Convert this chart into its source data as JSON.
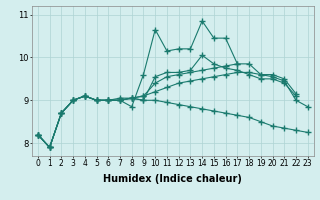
{
  "x": [
    0,
    1,
    2,
    3,
    4,
    5,
    6,
    7,
    8,
    9,
    10,
    11,
    12,
    13,
    14,
    15,
    16,
    17,
    18,
    19,
    20,
    21,
    22,
    23
  ],
  "lines": [
    [
      8.2,
      7.9,
      8.7,
      9.0,
      9.1,
      9.0,
      9.0,
      9.0,
      8.85,
      9.6,
      10.65,
      10.15,
      10.2,
      10.2,
      10.85,
      10.45,
      10.45,
      9.85,
      null,
      null,
      null,
      null,
      null,
      null
    ],
    [
      8.2,
      7.9,
      8.7,
      9.0,
      9.1,
      9.0,
      9.0,
      9.05,
      9.05,
      9.0,
      9.0,
      8.95,
      8.9,
      8.85,
      8.8,
      8.75,
      8.7,
      8.65,
      8.6,
      8.5,
      8.4,
      8.35,
      8.3,
      8.25
    ],
    [
      8.2,
      7.9,
      8.7,
      9.0,
      9.1,
      9.0,
      9.0,
      9.0,
      9.05,
      9.1,
      9.2,
      9.3,
      9.4,
      9.45,
      9.5,
      9.55,
      9.6,
      9.65,
      9.65,
      9.6,
      9.55,
      9.45,
      9.0,
      8.85
    ],
    [
      8.2,
      7.9,
      8.7,
      9.0,
      9.1,
      9.0,
      9.0,
      9.0,
      9.05,
      9.1,
      9.4,
      9.55,
      9.6,
      9.65,
      9.7,
      9.75,
      9.8,
      9.85,
      9.85,
      9.6,
      9.6,
      9.5,
      9.15,
      null
    ],
    [
      8.2,
      7.9,
      8.7,
      9.0,
      9.1,
      9.0,
      9.0,
      9.0,
      9.05,
      9.0,
      9.55,
      9.65,
      9.65,
      9.7,
      10.05,
      9.85,
      9.75,
      9.7,
      9.6,
      9.5,
      9.5,
      9.4,
      9.1,
      null
    ]
  ],
  "line_color": "#1a7a6e",
  "marker": "+",
  "marker_size": 4.0,
  "marker_mew": 1.0,
  "xlabel": "Humidex (Indice chaleur)",
  "xlim": [
    -0.5,
    23.5
  ],
  "ylim": [
    7.7,
    11.2
  ],
  "yticks": [
    8,
    9,
    10,
    11
  ],
  "xticks": [
    0,
    1,
    2,
    3,
    4,
    5,
    6,
    7,
    8,
    9,
    10,
    11,
    12,
    13,
    14,
    15,
    16,
    17,
    18,
    19,
    20,
    21,
    22,
    23
  ],
  "bg_color": "#d4eeee",
  "grid_color": "#aed4d4",
  "linewidth": 0.8,
  "xlabel_fontsize": 7,
  "tick_fontsize": 5.5
}
